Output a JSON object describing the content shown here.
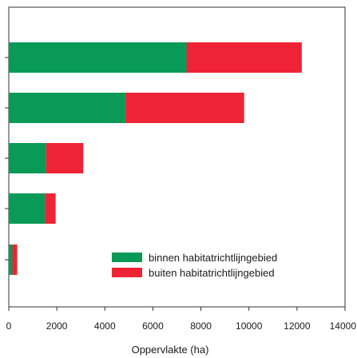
{
  "chart_data": {
    "type": "bar",
    "orientation": "horizontal",
    "stacked": true,
    "title": "",
    "xlabel": "Oppervlakte (ha)",
    "ylabel": "",
    "xlim": [
      0,
      14000
    ],
    "x_ticks": [
      "0",
      "2000",
      "4000",
      "6000",
      "8000",
      "10000",
      "12000",
      "14000"
    ],
    "categories": [
      "",
      "",
      "",
      "",
      ""
    ],
    "series": [
      {
        "name": "binnen habitatrichtlijngebied",
        "color": "#0a9a57",
        "values": [
          7400,
          4850,
          1550,
          1500,
          150
        ]
      },
      {
        "name": "buiten habitatrichtlijngebied",
        "color": "#ee2436",
        "values": [
          4800,
          4950,
          1550,
          450,
          200
        ]
      }
    ],
    "grid": false,
    "legend_position": "bottom-right"
  }
}
